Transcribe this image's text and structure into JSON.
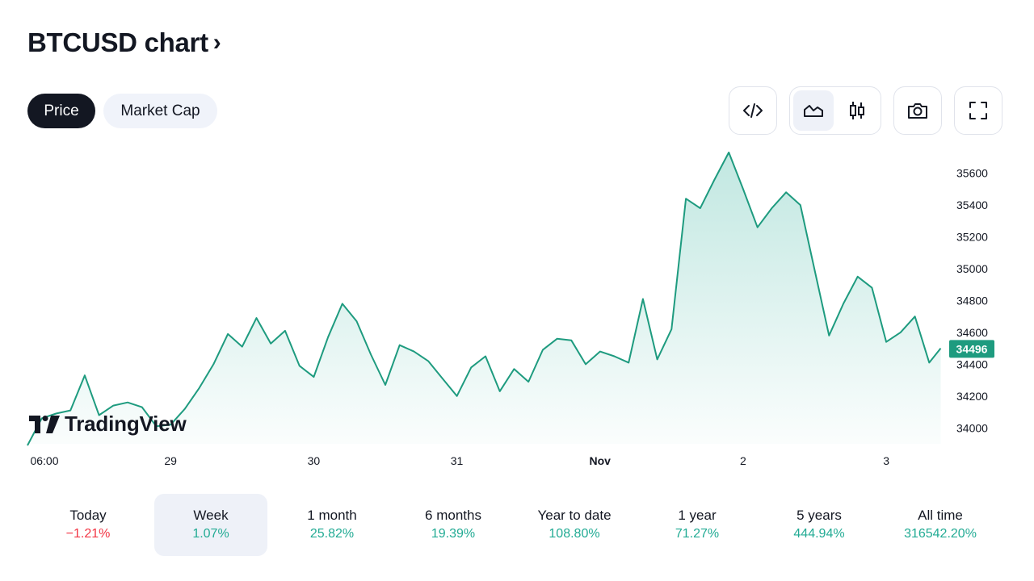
{
  "header": {
    "title": "BTCUSD chart",
    "chevron": "›"
  },
  "tabs": [
    {
      "label": "Price",
      "active": true
    },
    {
      "label": "Market Cap",
      "active": false
    }
  ],
  "toolbar": {
    "embed_icon": "code-icon",
    "line_icon": "area-chart-icon",
    "candle_icon": "candlestick-icon",
    "snapshot_icon": "camera-icon",
    "fullscreen_icon": "fullscreen-icon",
    "active_style": "area"
  },
  "branding": {
    "name": "TradingView"
  },
  "chart_data": {
    "type": "area",
    "symbol": "BTCUSD",
    "line_color": "#1e9b7f",
    "fill_color": "#22ab94",
    "last_price": "34496",
    "x_ticks": [
      "06:00",
      "29",
      "30",
      "31",
      "Nov",
      "2",
      "3"
    ],
    "y_ticks": [
      "35600",
      "35400",
      "35200",
      "35000",
      "34800",
      "34600",
      "34400",
      "34200",
      "34000"
    ],
    "ylim": [
      33900,
      35750
    ],
    "x_range": [
      0,
      6.4
    ],
    "series": [
      {
        "x": [
          0.0,
          0.1,
          0.2,
          0.3,
          0.4,
          0.5,
          0.6,
          0.7,
          0.8,
          0.9,
          1.0,
          1.1,
          1.2,
          1.3,
          1.4,
          1.5,
          1.6,
          1.7,
          1.8,
          1.9,
          2.0,
          2.1,
          2.2,
          2.3,
          2.4,
          2.5,
          2.6,
          2.7,
          2.8,
          2.9,
          3.0,
          3.1,
          3.2,
          3.3,
          3.4,
          3.5,
          3.6,
          3.7,
          3.8,
          3.9,
          4.0,
          4.1,
          4.2,
          4.3,
          4.4,
          4.5,
          4.6,
          4.7,
          4.8,
          4.9,
          5.0,
          5.1,
          5.2,
          5.3,
          5.4,
          5.5,
          5.6,
          5.7,
          5.8,
          5.9,
          6.0,
          6.1,
          6.2,
          6.3,
          6.38
        ],
        "y": [
          33890,
          34060,
          34090,
          34110,
          34330,
          34080,
          34140,
          34160,
          34130,
          34010,
          34020,
          34120,
          34250,
          34400,
          34590,
          34510,
          34690,
          34530,
          34610,
          34390,
          34320,
          34570,
          34780,
          34670,
          34460,
          34270,
          34520,
          34480,
          34420,
          34310,
          34200,
          34380,
          34450,
          34230,
          34370,
          34290,
          34490,
          34560,
          34550,
          34400,
          34480,
          34450,
          34410,
          34810,
          34430,
          34620,
          35440,
          35380,
          35560,
          35730,
          35500,
          35260,
          35380,
          35480,
          35400,
          34990,
          34580,
          34780,
          34950,
          34880,
          34540,
          34600,
          34700,
          34410,
          34500
        ]
      }
    ]
  },
  "periods": [
    {
      "label": "Today",
      "value": "−1.21%",
      "trend": "neg",
      "selected": false
    },
    {
      "label": "Week",
      "value": "1.07%",
      "trend": "pos",
      "selected": true
    },
    {
      "label": "1 month",
      "value": "25.82%",
      "trend": "pos",
      "selected": false
    },
    {
      "label": "6 months",
      "value": "19.39%",
      "trend": "pos",
      "selected": false
    },
    {
      "label": "Year to date",
      "value": "108.80%",
      "trend": "pos",
      "selected": false
    },
    {
      "label": "1 year",
      "value": "71.27%",
      "trend": "pos",
      "selected": false
    },
    {
      "label": "5 years",
      "value": "444.94%",
      "trend": "pos",
      "selected": false
    },
    {
      "label": "All time",
      "value": "316542.20%",
      "trend": "pos",
      "selected": false
    }
  ]
}
